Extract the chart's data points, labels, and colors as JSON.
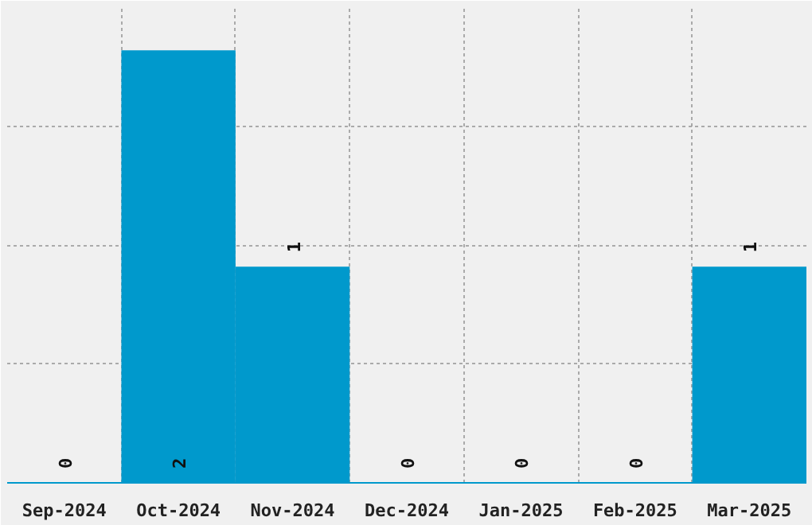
{
  "chart_data": {
    "type": "bar",
    "categories": [
      "Sep-2024",
      "Oct-2024",
      "Nov-2024",
      "Dec-2024",
      "Jan-2025",
      "Feb-2025",
      "Mar-2025"
    ],
    "values": [
      0,
      2,
      1,
      0,
      0,
      0,
      1
    ],
    "color": "#0099cc",
    "ylim": [
      0,
      2.2
    ],
    "yticks": [
      {
        "value": 0.55,
        "label": null
      },
      {
        "value": 1.1,
        "label": null
      },
      {
        "value": 1.65,
        "label": null
      },
      {
        "value": 2.2,
        "label": null
      }
    ],
    "grid": true,
    "data_labels": true,
    "tick_labels": "x"
  }
}
